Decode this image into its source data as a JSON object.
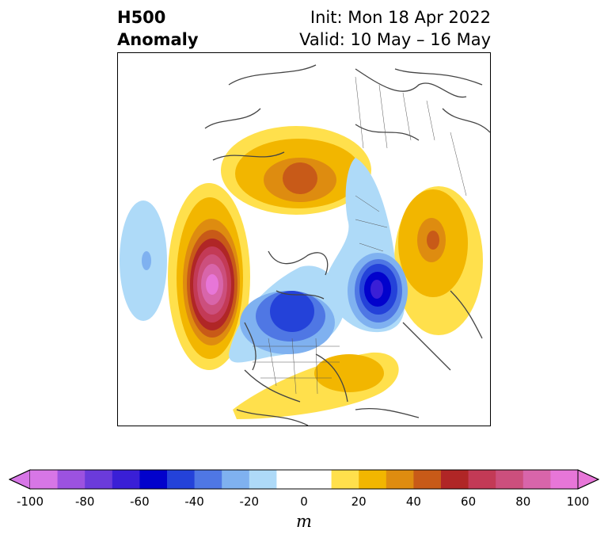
{
  "title": {
    "left_line1": "H500",
    "left_line2": "Anomaly",
    "right_line1": "Init: Mon 18 Apr 2022",
    "right_line2": "Valid: 10 May – 16 May"
  },
  "colorbar": {
    "unit": "m",
    "ticks": [
      "-100",
      "-80",
      "-60",
      "-40",
      "-20",
      "0",
      "20",
      "40",
      "60",
      "80",
      "100"
    ],
    "tick_values": [
      -100,
      -80,
      -60,
      -40,
      -20,
      0,
      20,
      40,
      60,
      80,
      100
    ],
    "min": -100,
    "max": 100,
    "extend": "both",
    "colors": [
      "#d776e6",
      "#9c52e0",
      "#6b3bdb",
      "#3a1fd6",
      "#0202cc",
      "#2442d9",
      "#4f77e4",
      "#7fb1f0",
      "#aedaf8",
      "#ffffff",
      "#ffffff",
      "#ffe04c",
      "#f2b600",
      "#de8c10",
      "#c85a18",
      "#b02626",
      "#c33a56",
      "#cc4f7d",
      "#d865aa",
      "#e776d8"
    ]
  }
}
